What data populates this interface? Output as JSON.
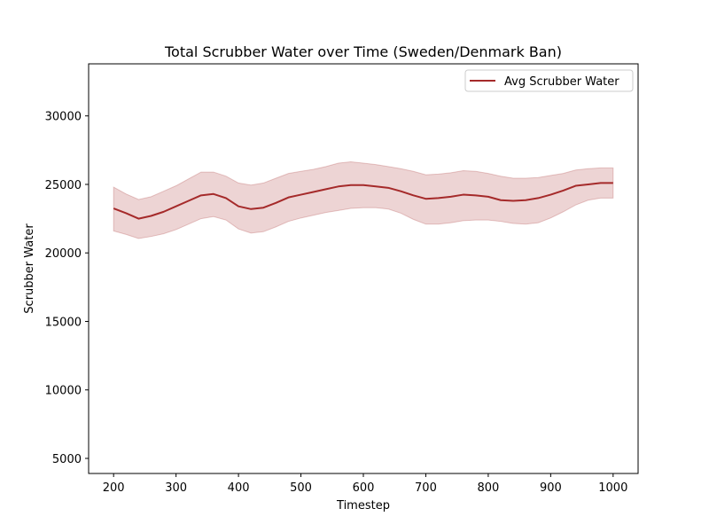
{
  "chart_data": {
    "type": "line",
    "title": "Total Scrubber Water over Time (Sweden/Denmark Ban)",
    "xlabel": "Timestep",
    "ylabel": "Scrubber Water",
    "xlim": [
      160,
      1040
    ],
    "ylim": [
      3900,
      33800
    ],
    "xticks": [
      200,
      300,
      400,
      500,
      600,
      700,
      800,
      900,
      1000
    ],
    "yticks": [
      5000,
      10000,
      15000,
      20000,
      25000,
      30000
    ],
    "grid": false,
    "legend_position": "top-right",
    "colors": {
      "line": "#a52a2a",
      "band": "#a52a2a",
      "band_opacity": 0.2
    },
    "series": [
      {
        "name": "Avg Scrubber Water",
        "x": [
          200,
          220,
          240,
          260,
          280,
          300,
          320,
          340,
          360,
          380,
          400,
          420,
          440,
          460,
          480,
          500,
          520,
          540,
          560,
          580,
          600,
          620,
          640,
          660,
          680,
          700,
          720,
          740,
          760,
          780,
          800,
          820,
          840,
          860,
          880,
          900,
          920,
          940,
          960,
          980,
          1000
        ],
        "y": [
          23250,
          22900,
          22500,
          22700,
          23000,
          23400,
          23800,
          24200,
          24300,
          24000,
          23400,
          23200,
          23300,
          23650,
          24050,
          24250,
          24450,
          24650,
          24850,
          24950,
          24950,
          24850,
          24750,
          24500,
          24200,
          23950,
          24000,
          24100,
          24250,
          24200,
          24100,
          23850,
          23800,
          23850,
          24000,
          24250,
          24550,
          24900,
          25000,
          25100,
          25100
        ],
        "upper": [
          24800,
          24300,
          23900,
          24100,
          24500,
          24900,
          25400,
          25900,
          25900,
          25600,
          25100,
          24950,
          25100,
          25450,
          25800,
          25950,
          26100,
          26300,
          26550,
          26650,
          26550,
          26450,
          26300,
          26150,
          25950,
          25700,
          25750,
          25850,
          26000,
          25950,
          25800,
          25600,
          25450,
          25450,
          25500,
          25650,
          25800,
          26050,
          26150,
          26200,
          26200
        ],
        "lower": [
          21600,
          21350,
          21050,
          21200,
          21400,
          21700,
          22100,
          22500,
          22650,
          22400,
          21750,
          21450,
          21550,
          21900,
          22300,
          22550,
          22750,
          22950,
          23100,
          23250,
          23300,
          23300,
          23200,
          22900,
          22450,
          22100,
          22100,
          22200,
          22350,
          22400,
          22400,
          22300,
          22150,
          22100,
          22200,
          22550,
          23000,
          23500,
          23850,
          24000,
          24000
        ]
      }
    ]
  }
}
